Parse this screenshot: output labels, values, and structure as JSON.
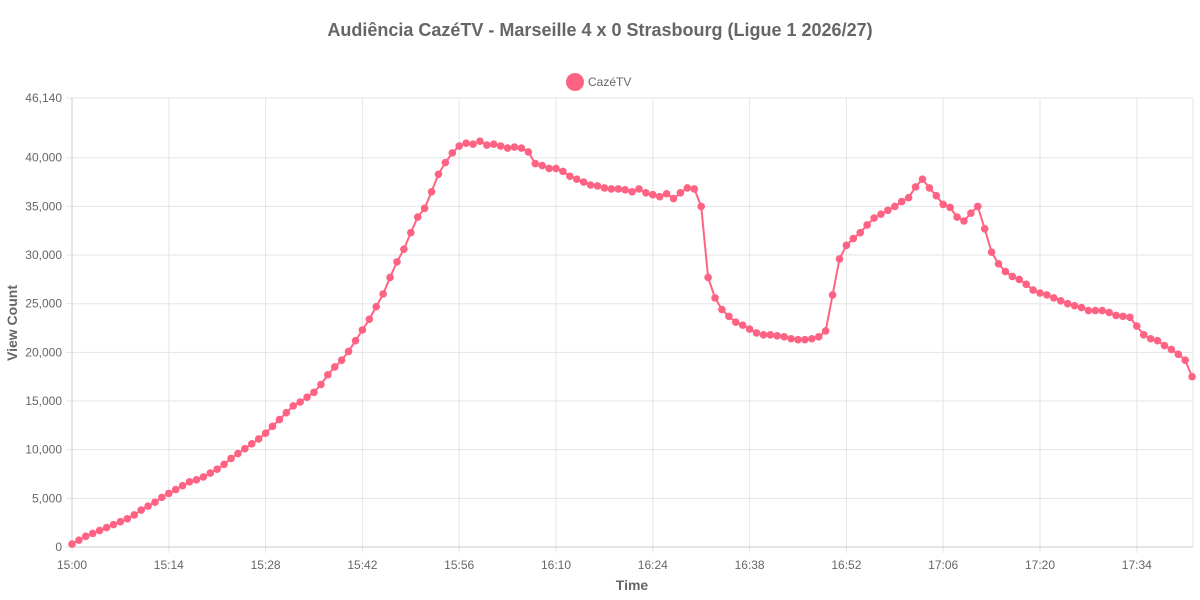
{
  "chart_data": {
    "type": "line",
    "title": "Audiência CazéTV - Marseille 4 x 0 Strasbourg (Ligue 1 2026/27)",
    "xlabel": "Time",
    "ylabel": "View Count",
    "ylim": [
      0,
      46140
    ],
    "y_ticks": [
      0,
      5000,
      10000,
      15000,
      20000,
      25000,
      30000,
      35000,
      40000,
      46140
    ],
    "y_tick_labels": [
      "0",
      "5,000",
      "10,000",
      "15,000",
      "20,000",
      "25,000",
      "30,000",
      "35,000",
      "40,000",
      "46,140"
    ],
    "x_tick_labels": [
      "15:00",
      "15:14",
      "15:28",
      "15:42",
      "15:56",
      "16:10",
      "16:24",
      "16:38",
      "16:52",
      "17:06",
      "17:20",
      "17:34"
    ],
    "x_start": "15:00",
    "x_interval_minutes": 1,
    "grid": true,
    "legend_position": "top-center",
    "color": "#ff6384",
    "series": [
      {
        "name": "CazéTV",
        "values": [
          300,
          700,
          1100,
          1400,
          1700,
          2000,
          2300,
          2600,
          2900,
          3300,
          3800,
          4200,
          4600,
          5100,
          5500,
          5900,
          6300,
          6700,
          6900,
          7200,
          7600,
          8000,
          8500,
          9100,
          9600,
          10100,
          10600,
          11100,
          11700,
          12400,
          13100,
          13800,
          14500,
          14900,
          15400,
          15900,
          16700,
          17700,
          18500,
          19200,
          20100,
          21200,
          22300,
          23400,
          24700,
          26000,
          27700,
          29300,
          30600,
          32300,
          33900,
          34800,
          36500,
          38300,
          39500,
          40500,
          41200,
          41500,
          41400,
          41700,
          41300,
          41400,
          41200,
          41000,
          41100,
          41000,
          40600,
          39400,
          39200,
          38900,
          38900,
          38600,
          38100,
          37800,
          37500,
          37200,
          37100,
          36900,
          36800,
          36800,
          36700,
          36500,
          36800,
          36400,
          36200,
          36000,
          36300,
          35800,
          36400,
          36900,
          36800,
          35000,
          27700,
          25600,
          24400,
          23700,
          23100,
          22800,
          22400,
          22000,
          21800,
          21800,
          21700,
          21600,
          21400,
          21300,
          21300,
          21400,
          21600,
          22200,
          25900,
          29600,
          31000,
          31700,
          32300,
          33100,
          33800,
          34200,
          34600,
          35000,
          35500,
          35900,
          37000,
          37800,
          36900,
          36100,
          35200,
          34900,
          33900,
          33500,
          34300,
          35000,
          32700,
          30300,
          29100,
          28300,
          27800,
          27500,
          27000,
          26400,
          26100,
          25900,
          25600,
          25300,
          25000,
          24800,
          24600,
          24300,
          24300,
          24300,
          24100,
          23800,
          23700,
          23600,
          22700,
          21800,
          21400,
          21200,
          20700,
          20300,
          19800,
          19200,
          17500
        ]
      }
    ]
  }
}
